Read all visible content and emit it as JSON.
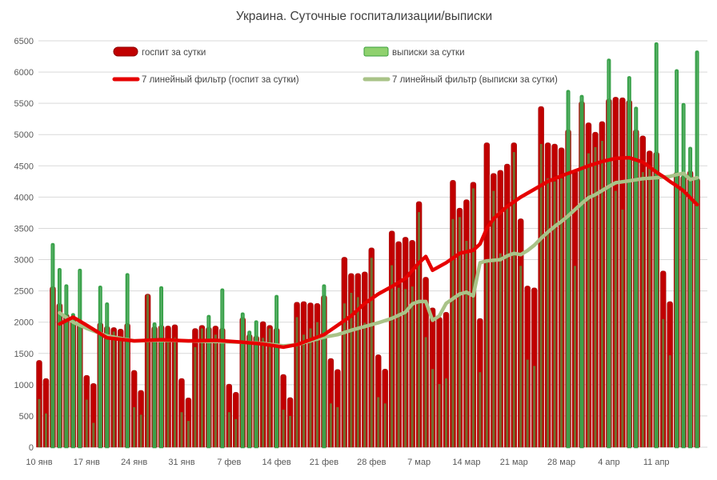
{
  "title": "Украина. Суточные госпитализации/выписки",
  "colors": {
    "background": "#ffffff",
    "grid": "#d9d9d9",
    "title_text": "#3f3f3f",
    "axis_text": "#595959",
    "legend_text": "#454545",
    "bar_hosp": "#c00000",
    "bar_hosp_border": "#8f0000",
    "bar_disch_above": "#3aa24b",
    "bar_disch_overlap": "#6f7030",
    "line_hosp": "#e60000",
    "line_disch": "#a9c388",
    "legend_disch_fill": "#8fd16e",
    "legend_disch_border": "#3a9e3c"
  },
  "legend": {
    "hosp_bars_label": "госпит за сутки",
    "disch_bars_label": "выписки за сутки",
    "hosp_line_label": "7 линейный фильтр (госпит за сутки)",
    "disch_line_label": "7 линейный фильтр (выписки за сутки)"
  },
  "chart_data": {
    "type": "bar",
    "title": "Украина. Суточные госпитализации/выписки",
    "xlabel": "",
    "ylabel": "",
    "ylim": [
      0,
      6500
    ],
    "y_ticks": [
      0,
      500,
      1000,
      1500,
      2000,
      2500,
      3000,
      3500,
      4000,
      4500,
      5000,
      5500,
      6000,
      6500
    ],
    "grid": "horizontal",
    "legend_position": "top",
    "start_day_label": "10 янв",
    "x_tick_days": [
      0,
      7,
      14,
      21,
      28,
      35,
      42,
      49,
      56,
      63,
      70,
      77,
      84,
      91
    ],
    "x_tick_labels": [
      "10 янв",
      "17 янв",
      "24 янв",
      "31 янв",
      "7 фев",
      "14 фев",
      "21 фев",
      "28 фев",
      "7 мар",
      "14 мар",
      "21 мар",
      "28 мар",
      "4 апр",
      "11 апр"
    ],
    "series": [
      {
        "name": "госпит за сутки",
        "type": "bar",
        "color": "#c00000",
        "values": [
          1390,
          1100,
          2570,
          2300,
          2130,
          2080,
          2000,
          1150,
          1020,
          1990,
          1935,
          1915,
          1890,
          1980,
          1230,
          910,
          2450,
          1930,
          1950,
          1940,
          1960,
          1100,
          790,
          1900,
          1950,
          1920,
          1940,
          1905,
          1010,
          880,
          2075,
          1805,
          1780,
          2010,
          1950,
          1905,
          1165,
          795,
          2320,
          2330,
          2310,
          2300,
          2430,
          1420,
          1245,
          3040,
          2780,
          2780,
          2805,
          3190,
          1480,
          1250,
          3460,
          3290,
          3360,
          3310,
          3930,
          2720,
          2230,
          2080,
          2160,
          4270,
          3825,
          3960,
          4240,
          2060,
          4870,
          4380,
          4430,
          4530,
          4870,
          3655,
          2580,
          2550,
          5450,
          4870,
          4850,
          4790,
          5080,
          4430,
          5530,
          5190,
          5040,
          5210,
          5570,
          5600,
          5590,
          5550,
          5080,
          4980,
          4740,
          4720,
          2820,
          2330,
          4400,
          4340,
          4420,
          4300
        ]
      },
      {
        "name": "выписки за сутки",
        "type": "bar",
        "color": "#3aa24b",
        "overlap_color": "#6f7030",
        "values": [
          770,
          540,
          3250,
          2850,
          2590,
          2130,
          2840,
          760,
          390,
          2570,
          2300,
          1850,
          1700,
          2770,
          640,
          520,
          2440,
          1980,
          2560,
          1700,
          1750,
          560,
          420,
          1600,
          1900,
          2100,
          1800,
          2525,
          560,
          450,
          2140,
          1850,
          2015,
          1750,
          1900,
          2420,
          600,
          500,
          2080,
          1800,
          1900,
          2000,
          2590,
          700,
          640,
          2300,
          2470,
          2400,
          1990,
          3030,
          800,
          700,
          2910,
          2550,
          2530,
          2570,
          3760,
          1760,
          1250,
          1010,
          1100,
          3650,
          3680,
          3300,
          4140,
          1200,
          3000,
          4100,
          3100,
          3850,
          4720,
          2900,
          1400,
          1300,
          4850,
          4300,
          4250,
          4300,
          5700,
          2900,
          5620,
          4700,
          4800,
          4900,
          6200,
          4100,
          3800,
          5920,
          5430,
          4400,
          4500,
          6460,
          2050,
          1470,
          6030,
          5490,
          4790,
          6330
        ]
      },
      {
        "name": "7 линейный фильтр (госпит за сутки)",
        "type": "line",
        "color": "#e60000",
        "points": [
          [
            3,
            1970
          ],
          [
            5,
            2080
          ],
          [
            7,
            1950
          ],
          [
            10,
            1750
          ],
          [
            14,
            1700
          ],
          [
            18,
            1720
          ],
          [
            22,
            1700
          ],
          [
            26,
            1710
          ],
          [
            30,
            1680
          ],
          [
            33,
            1650
          ],
          [
            36,
            1600
          ],
          [
            38,
            1640
          ],
          [
            40,
            1720
          ],
          [
            42,
            1800
          ],
          [
            44,
            1950
          ],
          [
            46,
            2100
          ],
          [
            48,
            2300
          ],
          [
            50,
            2450
          ],
          [
            52,
            2570
          ],
          [
            54,
            2700
          ],
          [
            56,
            2950
          ],
          [
            57,
            3050
          ],
          [
            58,
            2830
          ],
          [
            60,
            2950
          ],
          [
            62,
            3100
          ],
          [
            64,
            3150
          ],
          [
            65,
            3250
          ],
          [
            66,
            3500
          ],
          [
            67,
            3655
          ],
          [
            69,
            3850
          ],
          [
            71,
            4000
          ],
          [
            73,
            4125
          ],
          [
            75,
            4250
          ],
          [
            77,
            4340
          ],
          [
            79,
            4420
          ],
          [
            81,
            4500
          ],
          [
            83,
            4570
          ],
          [
            85,
            4620
          ],
          [
            87,
            4630
          ],
          [
            89,
            4560
          ],
          [
            90,
            4480
          ],
          [
            91,
            4400
          ],
          [
            92,
            4330
          ],
          [
            93,
            4250
          ],
          [
            94,
            4180
          ],
          [
            95,
            4100
          ],
          [
            96,
            3990
          ],
          [
            97,
            3880
          ]
        ]
      },
      {
        "name": "7 линейный фильтр (выписки за сутки)",
        "type": "line",
        "color": "#a9c388",
        "points": [
          [
            3,
            2150
          ],
          [
            5,
            2000
          ],
          [
            7,
            1900
          ],
          [
            10,
            1780
          ],
          [
            14,
            1700
          ],
          [
            18,
            1710
          ],
          [
            22,
            1700
          ],
          [
            26,
            1690
          ],
          [
            30,
            1680
          ],
          [
            33,
            1660
          ],
          [
            36,
            1620
          ],
          [
            38,
            1640
          ],
          [
            40,
            1700
          ],
          [
            42,
            1760
          ],
          [
            44,
            1800
          ],
          [
            46,
            1870
          ],
          [
            48,
            1930
          ],
          [
            50,
            1990
          ],
          [
            52,
            2060
          ],
          [
            54,
            2160
          ],
          [
            55,
            2290
          ],
          [
            56,
            2330
          ],
          [
            57,
            2330
          ],
          [
            58,
            2030
          ],
          [
            59,
            2100
          ],
          [
            60,
            2300
          ],
          [
            62,
            2450
          ],
          [
            63,
            2480
          ],
          [
            64,
            2420
          ],
          [
            65,
            2950
          ],
          [
            66,
            2980
          ],
          [
            68,
            3000
          ],
          [
            69,
            3060
          ],
          [
            70,
            3100
          ],
          [
            71,
            3080
          ],
          [
            72,
            3145
          ],
          [
            73,
            3230
          ],
          [
            74,
            3340
          ],
          [
            75,
            3440
          ],
          [
            76,
            3530
          ],
          [
            77,
            3610
          ],
          [
            78,
            3700
          ],
          [
            79,
            3800
          ],
          [
            80,
            3900
          ],
          [
            81,
            3990
          ],
          [
            82,
            4040
          ],
          [
            84,
            4170
          ],
          [
            85,
            4230
          ],
          [
            87,
            4260
          ],
          [
            89,
            4295
          ],
          [
            91,
            4310
          ],
          [
            93,
            4330
          ],
          [
            94,
            4360
          ],
          [
            95,
            4380
          ],
          [
            96,
            4280
          ],
          [
            97,
            4310
          ]
        ]
      }
    ]
  }
}
